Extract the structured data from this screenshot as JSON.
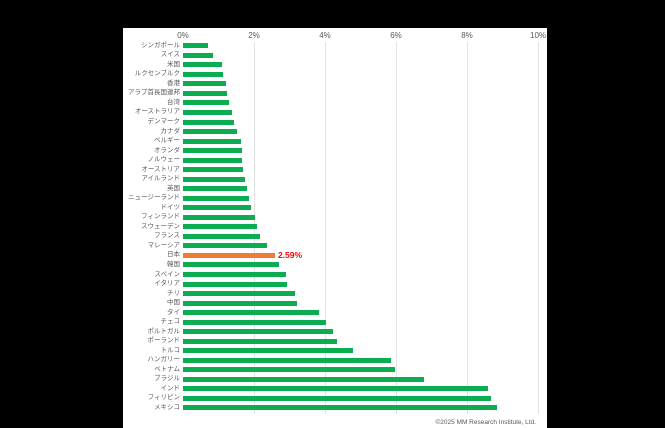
{
  "chart_data": {
    "type": "bar",
    "orientation": "horizontal",
    "title": "",
    "xlabel": "",
    "ylabel": "",
    "xlim": [
      0,
      10
    ],
    "x_ticks": [
      "0%",
      "2%",
      "4%",
      "6%",
      "8%",
      "10%"
    ],
    "grid": true,
    "bar_color": "#0cac52",
    "categories": [
      "シンガポール",
      "スイス",
      "米国",
      "ルクセンブルク",
      "香港",
      "アラブ首長国連邦",
      "台湾",
      "オーストラリア",
      "デンマーク",
      "カナダ",
      "ベルギー",
      "オランダ",
      "ノルウェー",
      "オーストリア",
      "アイルランド",
      "英国",
      "ニュージーランド",
      "ドイツ",
      "フィンランド",
      "スウェーデン",
      "フランス",
      "マレーシア",
      "日本",
      "韓国",
      "スペイン",
      "イタリア",
      "チリ",
      "中国",
      "タイ",
      "チェコ",
      "ポルトガル",
      "ポーランド",
      "トルコ",
      "ハンガリー",
      "ベトナム",
      "ブラジル",
      "インド",
      "フィリピン",
      "メキシコ"
    ],
    "values": [
      0.7,
      0.84,
      1.1,
      1.14,
      1.21,
      1.25,
      1.29,
      1.38,
      1.43,
      1.53,
      1.63,
      1.66,
      1.67,
      1.7,
      1.76,
      1.79,
      1.85,
      1.91,
      2.03,
      2.08,
      2.16,
      2.37,
      2.59,
      2.7,
      2.9,
      2.94,
      3.16,
      3.22,
      3.84,
      4.02,
      4.23,
      4.33,
      4.8,
      5.86,
      5.97,
      6.8,
      8.6,
      8.67,
      8.84
    ],
    "highlight": {
      "category": "日本",
      "value": 2.59,
      "label": "2.59%",
      "bar_color": "#ed7d31",
      "label_color": "#ff0000"
    }
  },
  "footer": {
    "copyright": "©2025 MM Research Institute, Ltd."
  }
}
